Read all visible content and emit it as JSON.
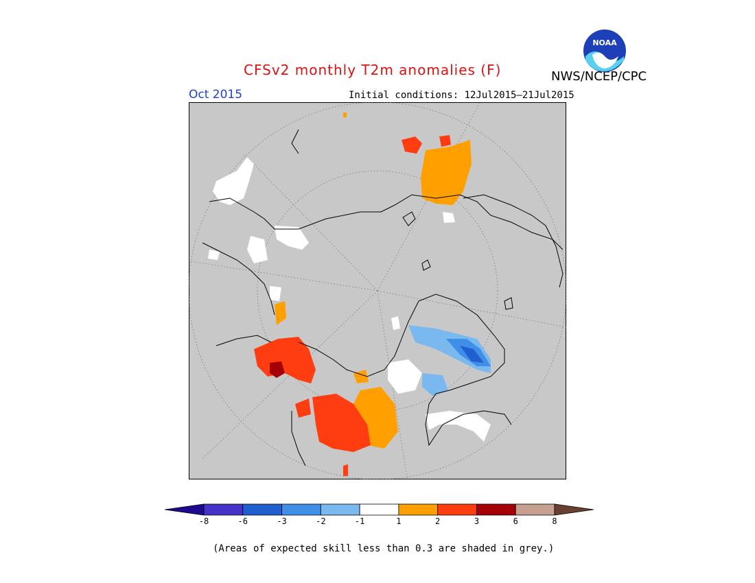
{
  "header": {
    "title": "CFSv2 monthly T2m anomalies (F)",
    "agency": "NWS/NCEP/CPC",
    "logo_text": "NOAA",
    "period": "Oct 2015",
    "initial_conditions": "Initial conditions: 12Jul2015–21Jul2015"
  },
  "legend": {
    "labels": [
      "-8",
      "-6",
      "-3",
      "-2",
      "-1",
      "1",
      "2",
      "3",
      "6",
      "8"
    ],
    "colors": [
      "#1e0a90",
      "#4433c8",
      "#1f5fd0",
      "#3f8fe8",
      "#7ab8f0",
      "#ffffff",
      "#ffa000",
      "#ff3d10",
      "#a50008",
      "#c8a090",
      "#6a4030"
    ]
  },
  "map": {
    "projection": "north polar stereographic",
    "background": "#c8c8c8",
    "grey_meaning": "skill < 0.3"
  },
  "footnote": "(Areas of expected skill less than 0.3 are shaded in grey.)"
}
